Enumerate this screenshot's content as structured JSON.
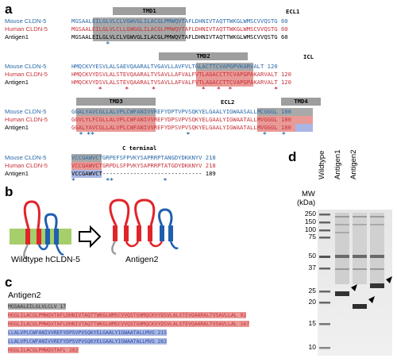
{
  "panels": {
    "a": "a",
    "b": "b",
    "c": "c",
    "d": "d"
  },
  "alignment": {
    "names": {
      "mouse": "Mouse CLDN-5",
      "human": "Human CLDN-5",
      "antigen": "Antigen1"
    },
    "block1": {
      "tmd": "TMD1",
      "ecl": "ECL1",
      "mouse": "MGSAALEILGLVLCLVGWVGLILACGLPMWQVTAFLDHNIVTAQTTWKGLWMSCVVQSTG 60",
      "human": "MGSAALEILGLVLCLLGWGGLILACGLPMWQVTAFLDHNIVTAQTTWKGLWMSCVVQSTG 60",
      "antigen": "MGSAALEILGLVLCLVGWVGLILACGLPMWQVTAFLDHNIVTAQTTWKGLWMSCVVQSTG 60",
      "stars": "         *"
    },
    "block2": {
      "tmd": "TMD2",
      "icl": "ICL",
      "mouse": "HMQCKVYESVLALSAEVQAARALTVGAVLLAVFVLTGLACTTCVAPGPVKARVALT 120",
      "human": "HMQCKVYDSVLALSTEVQAARALTVSAVLLAFVALFVTLAGACCTTCVAPGPAKARVALT 120",
      "antigen": "HMQCKVYDSVLALSTEVQAARALTVSAVLLAFVALFVTLAGACCTTCVAPGPAKARVALT 120",
      "stars": "       *      *      *            *   *  *           *"
    },
    "block3": {
      "tmd3": "TMD3",
      "ecl2": "ECL2",
      "tmd4": "TMD4",
      "mouse": "GGALYAVCGLLALVPLCWFANIVVREFYDPTVPVSQKYELGAALYIGWAASALLMCGGGL 180",
      "human": "GGVLYLFCGLLALVPLCWFANIVVREFYDPSVPVSQKYELGAALYIGWAATALLMVGGGL 180",
      "antigen": "GGALYAVCGLLALVPLCWFANIVVREFYDPSVPVSQKYELGAALYIGWAATALLMVGGGL 180",
      "stars": "  * **                        *                   *    *"
    },
    "block4": {
      "cterm": "C terminal",
      "mouse": "VCCGAWVCTGRPEFSFPVKYSAPRRPTANGDYDKKNYV 218",
      "human": "VCCGAWVCTGRPDLSFPVKYSAPRRPTATGDYDKKNYV 218",
      "antigen": "VCCGAWVCT----------------------------- 189",
      "stars": "*        **             *"
    }
  },
  "schematic": {
    "left_label": "Wildtype hCLDN-5",
    "right_label": "Antigen2",
    "colors": {
      "membrane": "#a6ce6b",
      "loop_red": "#e0242a",
      "loop_blue": "#1f5fb0",
      "tm_grey": "#9a9a9a"
    }
  },
  "antigen2": {
    "title": "Antigen2",
    "lines": [
      "MGSAALEILGLVLCLV 17",
      "HGGLILACGLPMWQVTAFLDHNIVTAQTTWKGLWMSCVVQSTGHMQCKVYDSVLALSTEVQAARALTVSAVLLAL 92",
      "HGGLILACGLPMWQVTAFLDHNIVTAQTTWKGLWMSCVVQSTGHMQCKVYDSVLALSTEVQAARALTVSAVLLAL 167",
      "LLALVPLCWFANIVVREFYDPSVPVSQKYELGAALYIGWAATALLMVG 215",
      "LLALVPLCWFANIVVREFYDPSVPVSQKYELGAALYIGWAATALLMVG 263",
      "HGGLILACGLPMWQVTAFL 282"
    ]
  },
  "gel": {
    "mw_title": "MW",
    "mw_unit": "(kDa)",
    "lanes": [
      "Wildtype",
      "Antigen1",
      "Antigen2"
    ],
    "markers": [
      "250",
      "150",
      "100",
      "75",
      "50",
      "37",
      "25",
      "20",
      "15",
      "10"
    ]
  }
}
